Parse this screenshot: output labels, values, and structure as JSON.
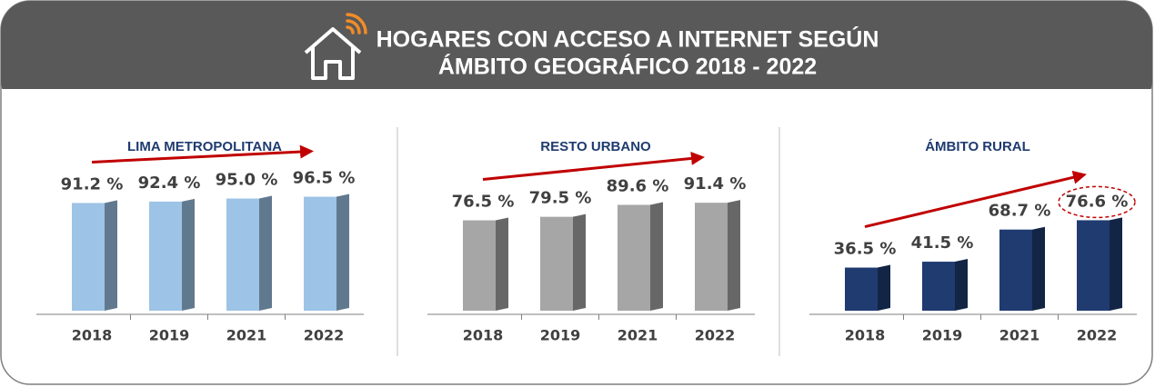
{
  "header": {
    "title": [
      "HOGARES CON ACCESO A INTERNET SEGÚN",
      "ÁMBITO GEOGRÁFICO 2018 - 2022"
    ]
  },
  "chart_data": [
    {
      "type": "bar",
      "title": "LIMA METROPOLITANA",
      "categories": [
        "2018",
        "2019",
        "2021",
        "2022"
      ],
      "values": [
        91.2,
        92.4,
        95.0,
        96.5
      ],
      "value_labels": [
        "91.2 %",
        "92.4 %",
        "95.0 %",
        "96.5 %"
      ],
      "color": "#9dc3e6"
    },
    {
      "type": "bar",
      "title": "RESTO URBANO",
      "categories": [
        "2018",
        "2019",
        "2021",
        "2022"
      ],
      "values": [
        76.5,
        79.5,
        89.6,
        91.4
      ],
      "value_labels": [
        "76.5 %",
        "79.5 %",
        "89.6 %",
        "91.4 %"
      ],
      "color": "#a6a6a6"
    },
    {
      "type": "bar",
      "title": "ÁMBITO RURAL",
      "categories": [
        "2018",
        "2019",
        "2021",
        "2022"
      ],
      "values": [
        36.5,
        41.5,
        68.7,
        76.6
      ],
      "value_labels": [
        "36.5 %",
        "41.5 %",
        "68.7 %",
        "76.6 %"
      ],
      "color": "#1f3b70"
    }
  ]
}
